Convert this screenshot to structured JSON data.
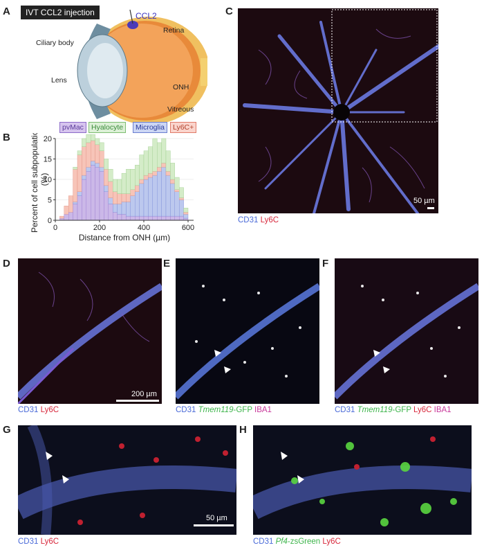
{
  "panels": {
    "A": {
      "label": "A",
      "title": "IVT CCL2 injection",
      "ccl2": "CCL2",
      "ciliary": "Ciliary body",
      "retina": "Retina",
      "lens": "Lens",
      "onh": "ONH",
      "vitreous": "Vitreous"
    },
    "B": {
      "label": "B"
    },
    "C": {
      "label": "C",
      "scale": "50 µm",
      "caption_cd31": "CD31",
      "caption_ly6c": "Ly6C"
    },
    "D": {
      "label": "D",
      "scale": "200 µm",
      "caption_cd31": "CD31",
      "caption_ly6c": "Ly6C"
    },
    "E": {
      "label": "E",
      "caption_cd31": "CD31",
      "caption_gene": "Tmem119",
      "caption_gfp": "-GFP",
      "caption_iba1": "IBA1"
    },
    "F": {
      "label": "F",
      "caption_cd31": "CD31",
      "caption_gene": "Tmem119",
      "caption_gfp": "-GFP",
      "caption_ly6c": "Ly6C",
      "caption_iba1": "IBA1"
    },
    "G": {
      "label": "G",
      "scale": "50 µm",
      "caption_cd31": "CD31",
      "caption_ly6c": "Ly6C"
    },
    "H": {
      "label": "H",
      "caption_cd31": "CD31",
      "caption_gene": "Pf4",
      "caption_zs": "-zsGreen",
      "caption_ly6c": "Ly6C"
    }
  },
  "colors": {
    "pvMac": "#c8b4e6",
    "Hyalocyte": "#cfe8c8",
    "Microglia": "#b8c4ec",
    "Ly6C": "#f6c0b4",
    "cd31": "#4a6ad8",
    "ly6c": "#d8283c",
    "iba1": "#c8369a",
    "green": "#3cb44a"
  },
  "chart_data": {
    "type": "bar",
    "stacked": true,
    "xlabel": "Distance from ONH (µm)",
    "ylabel": "Percent of cell subpopulation (%)",
    "ylim": [
      0,
      20
    ],
    "xlim": [
      0,
      625
    ],
    "xticks": [
      "0",
      "200",
      "400",
      "600"
    ],
    "yticks": [
      "0",
      "5",
      "10",
      "15",
      "20"
    ],
    "legend": [
      "pvMac",
      "Hyalocyte",
      "Microglia",
      "Ly6C+"
    ],
    "bin_width": 20,
    "x": [
      10,
      30,
      50,
      70,
      90,
      110,
      130,
      150,
      170,
      190,
      210,
      230,
      250,
      270,
      290,
      310,
      330,
      350,
      370,
      390,
      410,
      430,
      450,
      470,
      490,
      510,
      530,
      550,
      570,
      590,
      610
    ],
    "series": [
      {
        "name": "pvMac",
        "values": [
          0,
          0.5,
          1.5,
          2,
          4,
          6,
          10,
          12,
          13.5,
          13,
          12,
          7,
          4,
          2,
          1.5,
          1.5,
          1,
          1,
          1,
          1,
          1,
          1,
          1,
          1,
          1,
          1,
          1,
          1,
          1,
          0.5,
          0
        ]
      },
      {
        "name": "Microglia",
        "values": [
          0,
          0,
          0,
          0,
          0.5,
          1,
          1,
          1,
          1,
          1,
          1,
          1.5,
          1.5,
          2,
          2.5,
          3,
          3.5,
          5,
          6,
          8,
          9,
          9.5,
          10,
          11,
          12,
          10,
          8,
          6,
          4,
          1,
          0
        ]
      },
      {
        "name": "Ly6C+",
        "values": [
          0,
          0.5,
          2,
          4,
          8,
          9,
          7,
          6,
          5,
          4.5,
          4,
          4,
          4,
          3,
          2.5,
          2,
          2,
          1.5,
          1.5,
          1,
          1,
          1,
          1,
          1,
          1,
          1,
          1,
          0.5,
          0.5,
          0.5,
          0
        ]
      },
      {
        "name": "Hyalocyte",
        "values": [
          0,
          0,
          0,
          0,
          0.5,
          1,
          2,
          2,
          1.5,
          1.5,
          2,
          2.5,
          3,
          3,
          3.5,
          5,
          6,
          5,
          5,
          6,
          6,
          6.5,
          8,
          6,
          6,
          5,
          4,
          3,
          2.5,
          1,
          0
        ]
      }
    ]
  }
}
